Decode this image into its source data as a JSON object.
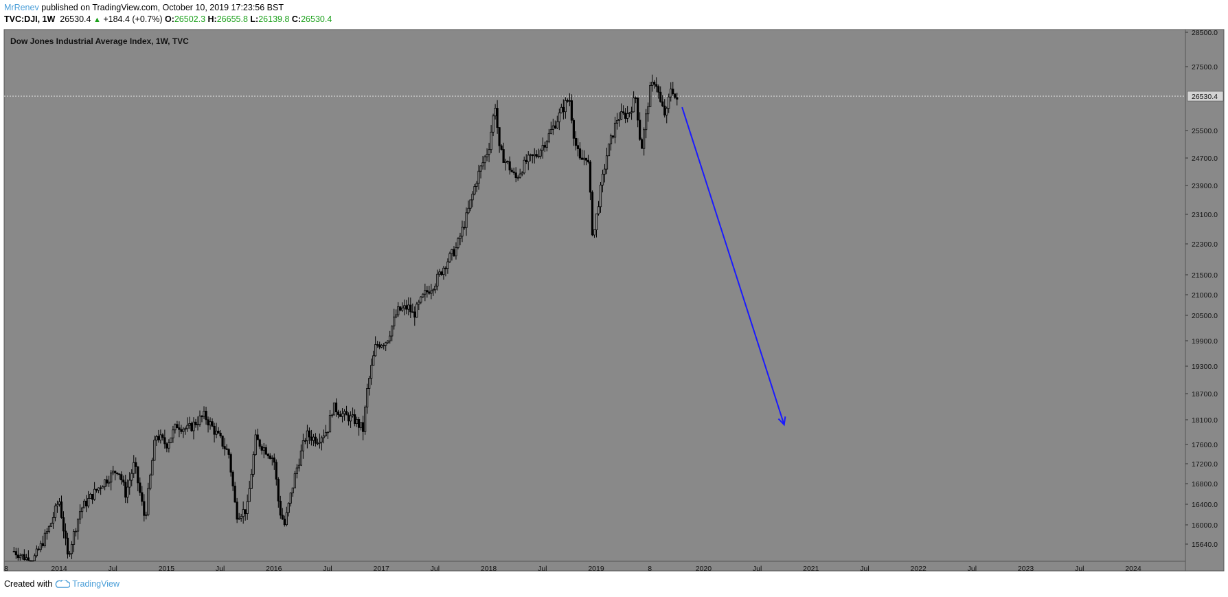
{
  "header": {
    "author": "MrRenev",
    "published_text": "published on TradingView.com, October 10, 2019 17:23:56 BST",
    "symbol": "TVC:DJI, 1W",
    "last": "26530.4",
    "change_arrow": "▲",
    "change": "+184.4 (+0.7%)",
    "o_label": "O:",
    "o_value": "26502.3",
    "h_label": "H:",
    "h_value": "26655.8",
    "l_label": "L:",
    "l_value": "26139.8",
    "c_label": "C:",
    "c_value": "26530.4"
  },
  "footer": {
    "created_with": "Created with",
    "brand": "TradingView"
  },
  "colors": {
    "plot_bg": "#898989",
    "candle": "#000000",
    "arrow": "#1a1aff",
    "accent": "#4a9ed8",
    "green": "#1aa01a"
  },
  "chart_data": {
    "type": "candlestick",
    "title": "Dow Jones Industrial Average Index, 1W, TVC",
    "price_label": "26530.4",
    "y_ticks": [
      28500,
      27500,
      26530.4,
      25500,
      24700,
      23900,
      23100,
      22300,
      21500,
      21000,
      20500,
      19900,
      19300,
      18700,
      18100,
      17600,
      17200,
      16800,
      16400,
      16000,
      15640
    ],
    "y_tick_labels": [
      "28500.0",
      "27500.0",
      "",
      "25500.0",
      "24700.0",
      "23900.0",
      "23100.0",
      "22300.0",
      "21500.0",
      "21000.0",
      "20500.0",
      "19900.0",
      "19300.0",
      "18700.0",
      "18100.0",
      "17600.0",
      "17200.0",
      "16800.0",
      "16400.0",
      "16000.0",
      "15640.0"
    ],
    "x_tick_labels": [
      "8",
      "2014",
      "Jul",
      "2015",
      "Jul",
      "2016",
      "Jul",
      "2017",
      "Jul",
      "2018",
      "Jul",
      "2019",
      "8",
      "2020",
      "Jul",
      "2021",
      "Jul",
      "2022",
      "Jul",
      "2023",
      "Jul",
      "2024"
    ],
    "x_tick_dates": [
      2013.58,
      2014.0,
      2014.5,
      2015.0,
      2015.5,
      2016.0,
      2016.5,
      2017.0,
      2017.5,
      2018.0,
      2018.5,
      2019.0,
      2019.5,
      2020.0,
      2020.5,
      2021.0,
      2021.5,
      2022.0,
      2022.5,
      2023.0,
      2023.5,
      2024.0
    ],
    "price_anchors": [
      [
        2013.58,
        15500
      ],
      [
        2013.75,
        15300
      ],
      [
        2013.83,
        15600
      ],
      [
        2013.92,
        16000
      ],
      [
        2014.0,
        16500
      ],
      [
        2014.08,
        15400
      ],
      [
        2014.2,
        16300
      ],
      [
        2014.4,
        16800
      ],
      [
        2014.55,
        17100
      ],
      [
        2014.62,
        16600
      ],
      [
        2014.7,
        17200
      ],
      [
        2014.8,
        16100
      ],
      [
        2014.9,
        17800
      ],
      [
        2015.0,
        17600
      ],
      [
        2015.1,
        18000
      ],
      [
        2015.2,
        17900
      ],
      [
        2015.35,
        18200
      ],
      [
        2015.5,
        17700
      ],
      [
        2015.58,
        17400
      ],
      [
        2015.65,
        16200
      ],
      [
        2015.75,
        16300
      ],
      [
        2015.83,
        17700
      ],
      [
        2015.92,
        17500
      ],
      [
        2016.0,
        17300
      ],
      [
        2016.05,
        16300
      ],
      [
        2016.1,
        16000
      ],
      [
        2016.2,
        17000
      ],
      [
        2016.3,
        17800
      ],
      [
        2016.4,
        17700
      ],
      [
        2016.5,
        17900
      ],
      [
        2016.55,
        18400
      ],
      [
        2016.65,
        18200
      ],
      [
        2016.75,
        18100
      ],
      [
        2016.83,
        17900
      ],
      [
        2016.87,
        18800
      ],
      [
        2016.95,
        19800
      ],
      [
        2017.05,
        19900
      ],
      [
        2017.15,
        20600
      ],
      [
        2017.25,
        20700
      ],
      [
        2017.3,
        20500
      ],
      [
        2017.4,
        21000
      ],
      [
        2017.5,
        21300
      ],
      [
        2017.6,
        21800
      ],
      [
        2017.7,
        22200
      ],
      [
        2017.8,
        23100
      ],
      [
        2017.9,
        24200
      ],
      [
        2018.0,
        25000
      ],
      [
        2018.06,
        26300
      ],
      [
        2018.1,
        24900
      ],
      [
        2018.18,
        24500
      ],
      [
        2018.25,
        24100
      ],
      [
        2018.35,
        24600
      ],
      [
        2018.45,
        24800
      ],
      [
        2018.55,
        25300
      ],
      [
        2018.68,
        26100
      ],
      [
        2018.75,
        26500
      ],
      [
        2018.8,
        25200
      ],
      [
        2018.85,
        24600
      ],
      [
        2018.92,
        24800
      ],
      [
        2018.97,
        22400
      ],
      [
        2019.02,
        23400
      ],
      [
        2019.1,
        24800
      ],
      [
        2019.2,
        25900
      ],
      [
        2019.3,
        26000
      ],
      [
        2019.37,
        26500
      ],
      [
        2019.42,
        24900
      ],
      [
        2019.5,
        26700
      ],
      [
        2019.55,
        27100
      ],
      [
        2019.6,
        26300
      ],
      [
        2019.65,
        25900
      ],
      [
        2019.7,
        26900
      ],
      [
        2019.75,
        26300
      ],
      [
        2019.77,
        26530.4
      ]
    ],
    "annotation_arrow": {
      "from": [
        2019.8,
        26200
      ],
      "to": [
        2020.75,
        18000
      ]
    }
  }
}
